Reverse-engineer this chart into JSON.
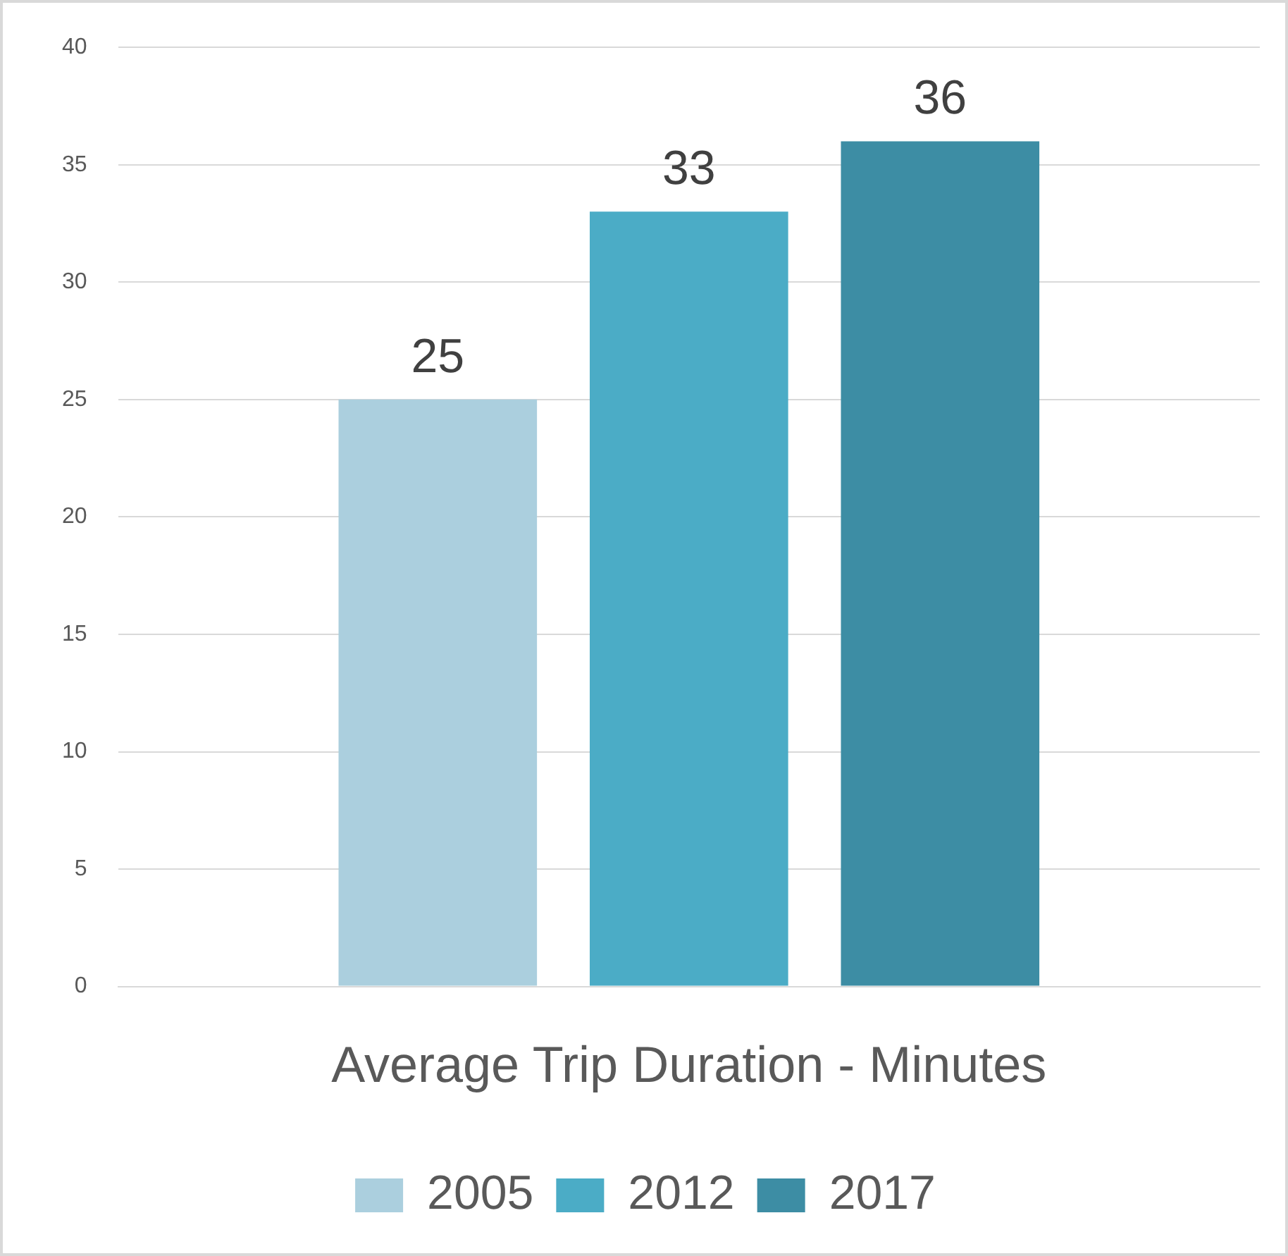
{
  "chart_data": {
    "type": "bar",
    "categories": [
      "Average Trip Duration - Minutes"
    ],
    "series": [
      {
        "name": "2005",
        "color": "#abcfde",
        "values": [
          25
        ]
      },
      {
        "name": "2012",
        "color": "#4bacc6",
        "values": [
          33
        ]
      },
      {
        "name": "2017",
        "color": "#3d8da4",
        "values": [
          36
        ]
      }
    ],
    "ylim": [
      0,
      40
    ],
    "yticks": [
      0,
      5,
      10,
      15,
      20,
      25,
      30,
      35,
      40
    ],
    "grid": "y",
    "legend": "bottom",
    "data_labels": true
  }
}
